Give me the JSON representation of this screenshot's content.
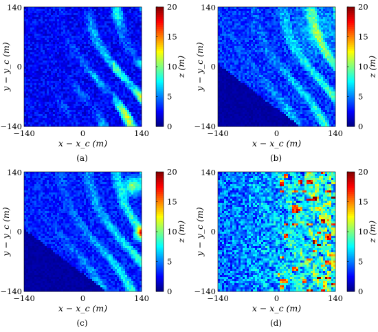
{
  "figure": {
    "colormap": "jet",
    "colors": {
      "jet": [
        "#00007f",
        "#0000ff",
        "#007fff",
        "#00ffff",
        "#7fff7f",
        "#ffff00",
        "#ff7f00",
        "#ff0000",
        "#7f0000"
      ],
      "background": "#ffffff",
      "text": "#000000"
    }
  },
  "chart_data": [
    {
      "type": "heatmap",
      "caption": "(a)",
      "xlabel": "x − x_c (m)",
      "ylabel": "y − y_c (m)",
      "xlim": [
        -140,
        140
      ],
      "ylim": [
        -140,
        140
      ],
      "x_ticks": [
        "−140",
        "0",
        "140"
      ],
      "y_ticks": [
        "140",
        "0",
        "−140"
      ],
      "colorbar": {
        "label": "z (m)",
        "range": [
          0,
          20
        ],
        "ticks": [
          "20",
          "15",
          "10",
          "5",
          "0"
        ]
      }
    },
    {
      "type": "heatmap",
      "caption": "(b)",
      "xlabel": "x − x_c (m)",
      "ylabel": "y − y_c (m)",
      "xlim": [
        -140,
        140
      ],
      "ylim": [
        -140,
        140
      ],
      "x_ticks": [
        "−140",
        "0",
        "140"
      ],
      "y_ticks": [
        "140",
        "0",
        "−140"
      ],
      "colorbar": {
        "label": "z (m)",
        "range": [
          0,
          20
        ],
        "ticks": [
          "20",
          "15",
          "10",
          "5",
          "0"
        ]
      }
    },
    {
      "type": "heatmap",
      "caption": "(c)",
      "xlabel": "x − x_c (m)",
      "ylabel": "y − y_c (m)",
      "xlim": [
        -140,
        140
      ],
      "ylim": [
        -140,
        140
      ],
      "x_ticks": [
        "−140",
        "0",
        "140"
      ],
      "y_ticks": [
        "140",
        "0",
        "−140"
      ],
      "colorbar": {
        "label": "z (m)",
        "range": [
          0,
          20
        ],
        "ticks": [
          "20",
          "15",
          "10",
          "5",
          "0"
        ]
      }
    },
    {
      "type": "heatmap",
      "caption": "(d)",
      "xlabel": "x − x_c (m)",
      "ylabel": "y − y_c (m)",
      "xlim": [
        -140,
        140
      ],
      "ylim": [
        -140,
        140
      ],
      "x_ticks": [
        "−140",
        "0",
        "140"
      ],
      "y_ticks": [
        "140",
        "0",
        "−140"
      ],
      "colorbar": {
        "label": "z (m)",
        "range": [
          0,
          20
        ],
        "ticks": [
          "20",
          "15",
          "10",
          "5",
          "0"
        ]
      }
    }
  ]
}
